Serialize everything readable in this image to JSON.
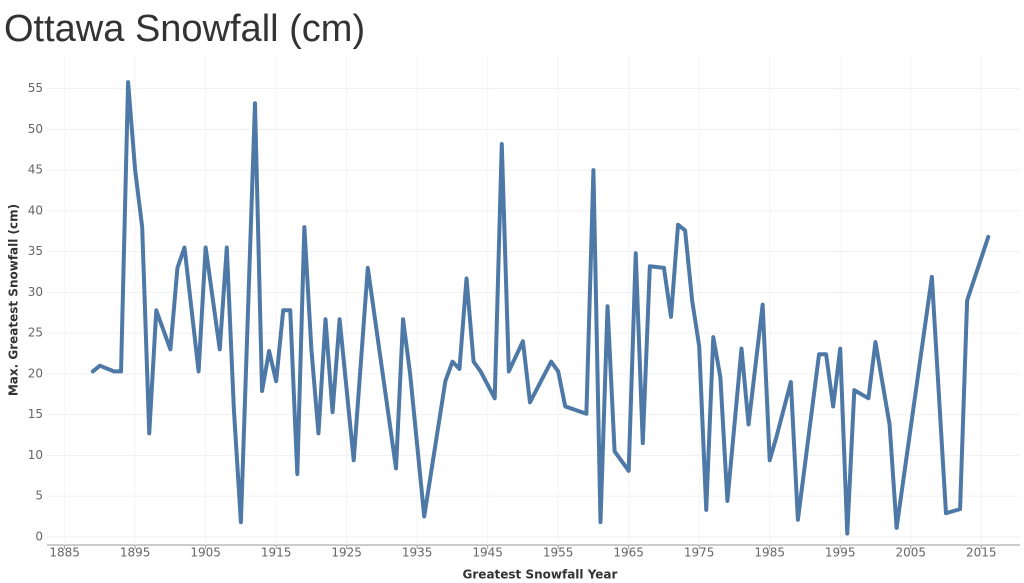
{
  "chart_data": {
    "type": "line",
    "title": "Ottawa Snowfall (cm)",
    "x_label": "Greatest Snowfall Year",
    "y_label": "Max. Greatest Snowfall (cm)",
    "x": [
      1889,
      1890,
      1892,
      1893,
      1894,
      1895,
      1896,
      1897,
      1898,
      1900,
      1901,
      1902,
      1904,
      1905,
      1907,
      1908,
      1909,
      1910,
      1912,
      1913,
      1914,
      1915,
      1916,
      1917,
      1918,
      1919,
      1920,
      1921,
      1922,
      1923,
      1924,
      1926,
      1928,
      1932,
      1933,
      1934,
      1936,
      1939,
      1940,
      1941,
      1942,
      1943,
      1944,
      1946,
      1947,
      1948,
      1950,
      1951,
      1954,
      1955,
      1956,
      1959,
      1960,
      1961,
      1962,
      1963,
      1965,
      1966,
      1967,
      1968,
      1970,
      1971,
      1972,
      1973,
      1974,
      1975,
      1976,
      1977,
      1978,
      1979,
      1981,
      1982,
      1984,
      1985,
      1986,
      1988,
      1989,
      1992,
      1993,
      1994,
      1995,
      1996,
      1997,
      1999,
      2000,
      2002,
      2003,
      2008,
      2010,
      2012,
      2013,
      2016
    ],
    "series": [
      {
        "name": "Max. Greatest Snowfall (cm)",
        "color": "#4e79a7",
        "values": [
          20.3,
          21,
          20.3,
          20.3,
          55.8,
          45,
          38,
          12.7,
          27.8,
          23,
          33,
          35.5,
          20.3,
          35.5,
          23,
          35.5,
          15.7,
          1.8,
          53.2,
          17.9,
          22.8,
          19.1,
          27.8,
          27.8,
          7.7,
          38,
          23,
          12.7,
          26.7,
          15.3,
          26.7,
          9.4,
          33,
          8.4,
          26.7,
          20,
          2.5,
          19.1,
          21.5,
          20.6,
          31.7,
          21.5,
          20.3,
          17,
          48.2,
          20.3,
          24,
          16.5,
          21.5,
          20.3,
          16,
          15.1,
          45,
          1.8,
          28.3,
          10.5,
          8.1,
          34.8,
          11.5,
          33.2,
          33,
          27,
          38.3,
          37.6,
          29,
          23.4,
          3.3,
          24.5,
          19.6,
          4.4,
          23.1,
          13.8,
          28.5,
          9.4,
          12.4,
          19,
          2.1,
          22.4,
          22.4,
          16,
          23.1,
          0.4,
          18,
          17,
          23.9,
          13.8,
          1.1,
          31.9,
          2.9,
          3.4,
          29,
          36.8
        ]
      }
    ],
    "xlim": [
      1882.5,
      2020.5
    ],
    "xticks": [
      1885,
      1895,
      1905,
      1915,
      1925,
      1935,
      1945,
      1955,
      1965,
      1975,
      1985,
      1995,
      2005,
      2015
    ],
    "ylim": [
      -1,
      59
    ],
    "yticks": [
      0,
      5,
      10,
      15,
      20,
      25,
      30,
      35,
      40,
      45,
      50,
      55
    ],
    "grid": true
  }
}
